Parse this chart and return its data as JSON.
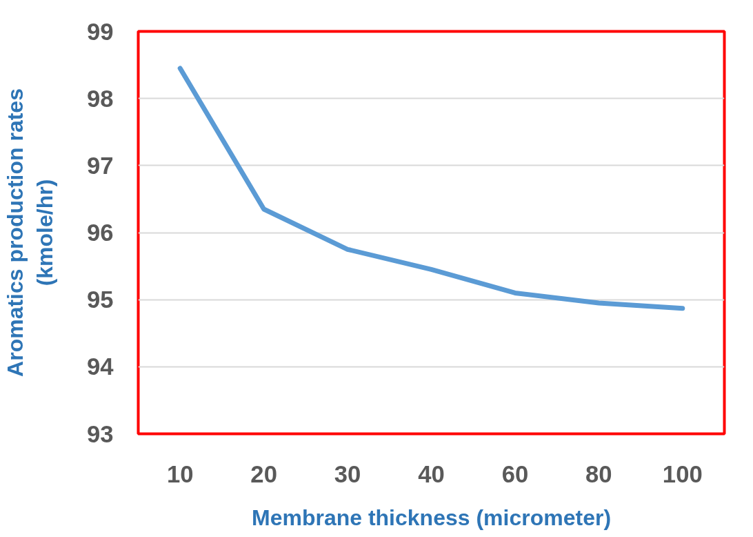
{
  "chart_data": {
    "type": "line",
    "xlabel": "Membrane thickness (micrometer)",
    "ylabel": "Aromatics production rates\n(kmole/hr)",
    "categories": [
      "10",
      "20",
      "30",
      "40",
      "60",
      "80",
      "100"
    ],
    "series": [
      {
        "color": "#5b9bd5",
        "values": [
          98.45,
          96.35,
          95.75,
          95.45,
          95.1,
          94.95,
          94.87
        ]
      }
    ],
    "ylim": [
      93,
      99
    ],
    "yticks": [
      93,
      94,
      95,
      96,
      97,
      98,
      99
    ],
    "grid": "y",
    "marker": "none",
    "line_style": "solid"
  }
}
